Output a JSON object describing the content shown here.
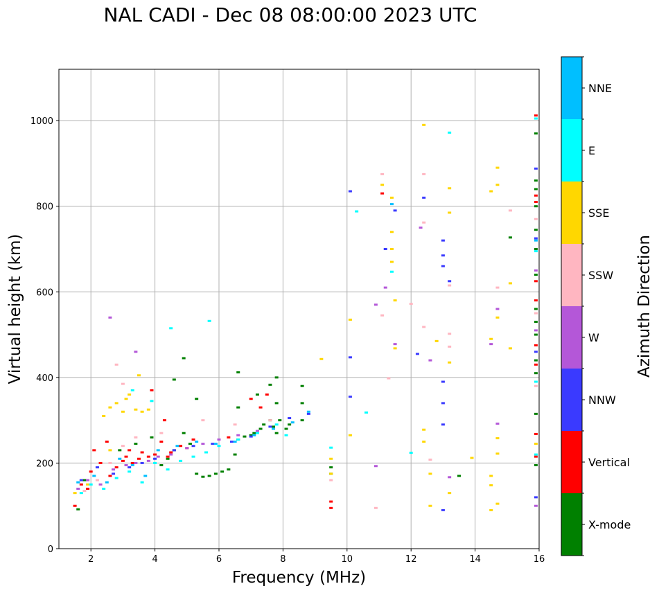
{
  "chart_data": {
    "type": "scatter",
    "title": "NAL CADI - Dec 08 08:00:00 2023 UTC",
    "xlabel": "Frequency (MHz)",
    "ylabel": "Virtual height (km)",
    "xlim": [
      1,
      16
    ],
    "ylim": [
      0,
      1120
    ],
    "xticks": [
      2,
      4,
      6,
      8,
      10,
      12,
      14,
      16
    ],
    "yticks": [
      0,
      200,
      400,
      600,
      800,
      1000
    ],
    "grid": true,
    "colorbar": {
      "label": "Azimuth Direction",
      "categories": [
        {
          "name": "X-mode",
          "color": "#008000"
        },
        {
          "name": "Vertical",
          "color": "#ff0000"
        },
        {
          "name": "NNW",
          "color": "#3a3aff"
        },
        {
          "name": "W",
          "color": "#b457d8"
        },
        {
          "name": "SSW",
          "color": "#ffb6c1"
        },
        {
          "name": "SSE",
          "color": "#ffd700"
        },
        {
          "name": "E",
          "color": "#00ffff"
        },
        {
          "name": "NNE",
          "color": "#00bfff"
        }
      ]
    },
    "series": [
      {
        "name": "X-mode",
        "points": [
          [
            1.6,
            92
          ],
          [
            1.8,
            160
          ],
          [
            2.9,
            230
          ],
          [
            3.4,
            245
          ],
          [
            3.9,
            260
          ],
          [
            4.2,
            195
          ],
          [
            4.4,
            210
          ],
          [
            4.6,
            230
          ],
          [
            4.9,
            270
          ],
          [
            5.1,
            245
          ],
          [
            5.3,
            175
          ],
          [
            5.5,
            168
          ],
          [
            5.7,
            170
          ],
          [
            5.9,
            175
          ],
          [
            6.1,
            180
          ],
          [
            6.3,
            185
          ],
          [
            6.5,
            220
          ],
          [
            6.6,
            255
          ],
          [
            6.8,
            262
          ],
          [
            7.0,
            265
          ],
          [
            7.1,
            270
          ],
          [
            7.3,
            280
          ],
          [
            7.4,
            290
          ],
          [
            7.6,
            300
          ],
          [
            7.7,
            285
          ],
          [
            7.8,
            400
          ],
          [
            7.8,
            340
          ],
          [
            7.8,
            270
          ],
          [
            7.9,
            300
          ],
          [
            8.1,
            280
          ],
          [
            8.2,
            290
          ],
          [
            8.6,
            380
          ],
          [
            8.6,
            340
          ],
          [
            8.6,
            300
          ],
          [
            9.5,
            175
          ],
          [
            9.5,
            190
          ],
          [
            13.5,
            170
          ],
          [
            15.1,
            727
          ],
          [
            15.9,
            970
          ],
          [
            15.9,
            860
          ],
          [
            15.9,
            840
          ],
          [
            15.9,
            800
          ],
          [
            15.9,
            745
          ],
          [
            15.9,
            700
          ],
          [
            15.9,
            640
          ],
          [
            15.9,
            560
          ],
          [
            15.9,
            530
          ],
          [
            15.9,
            500
          ],
          [
            15.9,
            440
          ],
          [
            15.9,
            410
          ],
          [
            15.9,
            315
          ],
          [
            15.9,
            195
          ],
          [
            4.9,
            445
          ],
          [
            4.6,
            395
          ],
          [
            5.3,
            350
          ],
          [
            6.6,
            412
          ],
          [
            6.6,
            330
          ],
          [
            7.2,
            360
          ],
          [
            7.6,
            383
          ]
        ]
      },
      {
        "name": "Vertical",
        "points": [
          [
            1.5,
            100
          ],
          [
            1.7,
            150
          ],
          [
            1.9,
            140
          ],
          [
            2.0,
            180
          ],
          [
            2.1,
            230
          ],
          [
            2.3,
            200
          ],
          [
            2.5,
            250
          ],
          [
            2.6,
            170
          ],
          [
            2.8,
            190
          ],
          [
            3.0,
            205
          ],
          [
            3.1,
            215
          ],
          [
            3.3,
            200
          ],
          [
            3.5,
            210
          ],
          [
            3.6,
            225
          ],
          [
            3.8,
            215
          ],
          [
            4.0,
            220
          ],
          [
            4.2,
            250
          ],
          [
            4.4,
            215
          ],
          [
            4.5,
            225
          ],
          [
            4.8,
            240
          ],
          [
            5.0,
            235
          ],
          [
            5.2,
            255
          ],
          [
            6.3,
            260
          ],
          [
            7.0,
            350
          ],
          [
            7.3,
            330
          ],
          [
            7.5,
            360
          ],
          [
            9.5,
            95
          ],
          [
            9.5,
            110
          ],
          [
            11.1,
            830
          ],
          [
            15.9,
            1012
          ],
          [
            15.9,
            825
          ],
          [
            15.9,
            810
          ],
          [
            15.9,
            625
          ],
          [
            15.9,
            580
          ],
          [
            15.9,
            475
          ],
          [
            15.9,
            430
          ],
          [
            15.9,
            268
          ],
          [
            15.9,
            215
          ],
          [
            3.9,
            370
          ],
          [
            4.3,
            300
          ],
          [
            3.2,
            230
          ]
        ]
      },
      {
        "name": "NNW",
        "points": [
          [
            1.7,
            160
          ],
          [
            2.2,
            190
          ],
          [
            2.7,
            175
          ],
          [
            3.2,
            190
          ],
          [
            3.6,
            200
          ],
          [
            4.0,
            210
          ],
          [
            4.6,
            230
          ],
          [
            5.2,
            240
          ],
          [
            5.8,
            245
          ],
          [
            6.4,
            250
          ],
          [
            7.0,
            262
          ],
          [
            7.6,
            285
          ],
          [
            8.2,
            305
          ],
          [
            8.8,
            315
          ],
          [
            10.1,
            835
          ],
          [
            10.1,
            447
          ],
          [
            10.1,
            355
          ],
          [
            11.2,
            700
          ],
          [
            11.5,
            790
          ],
          [
            12.2,
            455
          ],
          [
            12.4,
            820
          ],
          [
            13.0,
            685
          ],
          [
            13.0,
            660
          ],
          [
            13.0,
            720
          ],
          [
            13.0,
            390
          ],
          [
            13.0,
            340
          ],
          [
            13.0,
            290
          ],
          [
            13.0,
            90
          ],
          [
            13.2,
            625
          ],
          [
            15.9,
            888
          ],
          [
            15.9,
            725
          ],
          [
            15.9,
            460
          ],
          [
            15.9,
            120
          ]
        ]
      },
      {
        "name": "W",
        "points": [
          [
            1.6,
            140
          ],
          [
            1.9,
            160
          ],
          [
            2.3,
            150
          ],
          [
            2.7,
            185
          ],
          [
            3.1,
            195
          ],
          [
            3.4,
            200
          ],
          [
            3.8,
            205
          ],
          [
            4.1,
            215
          ],
          [
            4.5,
            220
          ],
          [
            5.0,
            235
          ],
          [
            5.5,
            245
          ],
          [
            6.0,
            255
          ],
          [
            6.6,
            265
          ],
          [
            7.2,
            275
          ],
          [
            10.9,
            570
          ],
          [
            10.9,
            193
          ],
          [
            11.2,
            610
          ],
          [
            11.5,
            478
          ],
          [
            12.3,
            750
          ],
          [
            12.6,
            440
          ],
          [
            13.2,
            167
          ],
          [
            14.5,
            478
          ],
          [
            14.7,
            560
          ],
          [
            14.7,
            292
          ],
          [
            15.9,
            650
          ],
          [
            15.9,
            510
          ],
          [
            15.9,
            100
          ],
          [
            2.6,
            540
          ],
          [
            3.4,
            460
          ]
        ]
      },
      {
        "name": "SSW",
        "points": [
          [
            1.8,
            135
          ],
          [
            2.2,
            160
          ],
          [
            2.6,
            200
          ],
          [
            3.0,
            240
          ],
          [
            3.4,
            260
          ],
          [
            4.2,
            270
          ],
          [
            5.5,
            300
          ],
          [
            6.5,
            290
          ],
          [
            7.6,
            300
          ],
          [
            9.5,
            160
          ],
          [
            10.9,
            95
          ],
          [
            11.1,
            545
          ],
          [
            11.1,
            875
          ],
          [
            11.3,
            398
          ],
          [
            12.0,
            572
          ],
          [
            12.4,
            875
          ],
          [
            12.4,
            518
          ],
          [
            12.4,
            762
          ],
          [
            12.6,
            208
          ],
          [
            13.2,
            502
          ],
          [
            13.2,
            472
          ],
          [
            13.2,
            615
          ],
          [
            14.7,
            610
          ],
          [
            15.1,
            790
          ],
          [
            15.9,
            770
          ],
          [
            15.9,
            550
          ],
          [
            15.9,
            380
          ],
          [
            2.8,
            430
          ],
          [
            3.0,
            385
          ]
        ]
      },
      {
        "name": "SSE",
        "points": [
          [
            1.5,
            130
          ],
          [
            1.9,
            150
          ],
          [
            2.4,
            310
          ],
          [
            2.6,
            330
          ],
          [
            2.8,
            340
          ],
          [
            3.0,
            320
          ],
          [
            3.1,
            350
          ],
          [
            3.2,
            360
          ],
          [
            3.4,
            325
          ],
          [
            3.6,
            320
          ],
          [
            3.8,
            325
          ],
          [
            3.5,
            405
          ],
          [
            2.6,
            230
          ],
          [
            9.2,
            443
          ],
          [
            9.5,
            210
          ],
          [
            9.5,
            175
          ],
          [
            10.1,
            265
          ],
          [
            10.1,
            535
          ],
          [
            11.1,
            850
          ],
          [
            11.4,
            740
          ],
          [
            11.4,
            700
          ],
          [
            11.4,
            670
          ],
          [
            11.4,
            820
          ],
          [
            11.5,
            468
          ],
          [
            11.5,
            580
          ],
          [
            12.4,
            990
          ],
          [
            12.4,
            278
          ],
          [
            12.4,
            250
          ],
          [
            12.6,
            175
          ],
          [
            12.6,
            100
          ],
          [
            12.8,
            485
          ],
          [
            13.2,
            842
          ],
          [
            13.2,
            785
          ],
          [
            13.2,
            435
          ],
          [
            13.2,
            130
          ],
          [
            13.9,
            212
          ],
          [
            14.5,
            835
          ],
          [
            14.5,
            490
          ],
          [
            14.5,
            170
          ],
          [
            14.5,
            148
          ],
          [
            14.5,
            90
          ],
          [
            14.7,
            890
          ],
          [
            14.7,
            850
          ],
          [
            14.7,
            540
          ],
          [
            14.7,
            258
          ],
          [
            14.7,
            222
          ],
          [
            14.7,
            105
          ],
          [
            15.1,
            468
          ],
          [
            15.1,
            620
          ],
          [
            15.9,
            245
          ]
        ]
      },
      {
        "name": "E",
        "points": [
          [
            1.7,
            130
          ],
          [
            2.0,
            150
          ],
          [
            2.4,
            140
          ],
          [
            2.8,
            165
          ],
          [
            3.2,
            180
          ],
          [
            3.6,
            155
          ],
          [
            4.0,
            200
          ],
          [
            4.4,
            185
          ],
          [
            4.8,
            205
          ],
          [
            5.2,
            215
          ],
          [
            5.6,
            225
          ],
          [
            6.0,
            240
          ],
          [
            6.6,
            255
          ],
          [
            7.2,
            270
          ],
          [
            7.8,
            290
          ],
          [
            8.1,
            265
          ],
          [
            4.5,
            515
          ],
          [
            5.7,
            532
          ],
          [
            9.5,
            236
          ],
          [
            10.3,
            788
          ],
          [
            10.6,
            318
          ],
          [
            11.4,
            647
          ],
          [
            12.0,
            224
          ],
          [
            13.2,
            972
          ],
          [
            15.9,
            1005
          ],
          [
            15.9,
            695
          ],
          [
            15.9,
            390
          ],
          [
            15.9,
            220
          ],
          [
            3.3,
            370
          ],
          [
            3.9,
            345
          ]
        ]
      },
      {
        "name": "NNE",
        "points": [
          [
            1.6,
            155
          ],
          [
            2.1,
            170
          ],
          [
            2.5,
            155
          ],
          [
            2.9,
            210
          ],
          [
            3.3,
            195
          ],
          [
            3.7,
            170
          ],
          [
            4.1,
            230
          ],
          [
            4.7,
            240
          ],
          [
            5.3,
            250
          ],
          [
            5.9,
            245
          ],
          [
            6.5,
            250
          ],
          [
            7.1,
            265
          ],
          [
            7.7,
            280
          ],
          [
            8.3,
            295
          ],
          [
            8.8,
            320
          ],
          [
            11.4,
            805
          ],
          [
            15.9,
            720
          ]
        ]
      }
    ]
  }
}
